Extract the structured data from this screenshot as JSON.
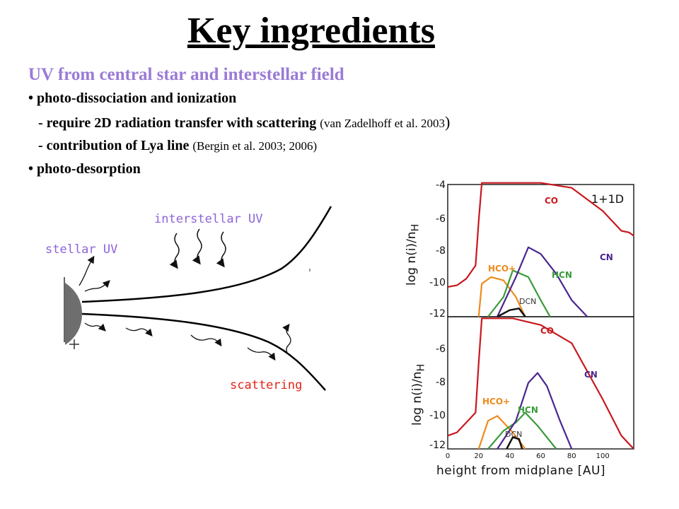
{
  "title": "Key ingredients",
  "subtitle": "UV from central star and interstellar field",
  "bullets": {
    "b1": "• photo-dissociation and ionization",
    "b1a_main": "- require 2D radiation transfer with scattering",
    "b1a_ref": "(van Zadelhoff et al. 2003",
    "b1a_paren": ")",
    "b1b_main": "- contribution of Lya line",
    "b1b_ref": "(Bergin et al. 2003; 2006)",
    "b2": "• photo-desorption"
  },
  "diagram": {
    "interstellar_uv": "interstellar UV",
    "stellar_uv": "stellar UV",
    "scattering": "scattering"
  },
  "chart": {
    "panel_label": "1+1D",
    "ylabel": "log n(i)/n",
    "ylabel_sub": "H",
    "xlabel": "height from midplane [AU]",
    "top_ticks": [
      "-4",
      "-6",
      "-8",
      "-10",
      "-12"
    ],
    "bottom_ticks": [
      "-6",
      "-8",
      "-10",
      "-12"
    ],
    "x_ticks": [
      "0",
      "20",
      "40",
      "60",
      "80",
      "100"
    ],
    "species": [
      "CO",
      "CN",
      "HCO+",
      "HCN",
      "DCN"
    ],
    "colors": {
      "CO": "#c8181e",
      "CN": "#4b2590",
      "HCO+": "#ee8a1c",
      "HCN": "#3a9a3a",
      "DCN": "#111111"
    }
  },
  "chart_data": {
    "type": "line",
    "xlabel": "height from midplane [AU]",
    "ylabel": "log n(i)/nH",
    "xlim": [
      0,
      120
    ],
    "panels": [
      {
        "label": "1+1D",
        "ylim": [
          -12,
          -4
        ],
        "series": [
          {
            "name": "CO",
            "x": [
              0,
              6,
              12,
              18,
              20,
              22,
              60,
              80,
              100,
              112,
              117,
              120
            ],
            "y": [
              -10.2,
              -10.1,
              -9.7,
              -8.9,
              -6.2,
              -3.9,
              -3.9,
              -4.2,
              -5.6,
              -6.8,
              -6.9,
              -7.1
            ]
          },
          {
            "name": "HCO+",
            "x": [
              20,
              22,
              28,
              36,
              44,
              50
            ],
            "y": [
              -12,
              -10.0,
              -9.6,
              -9.8,
              -10.8,
              -12
            ]
          },
          {
            "name": "HCN",
            "x": [
              26,
              36,
              42,
              52,
              60,
              66
            ],
            "y": [
              -12,
              -10.8,
              -9.2,
              -9.6,
              -11.0,
              -12
            ]
          },
          {
            "name": "CN",
            "x": [
              32,
              44,
              52,
              60,
              70,
              80,
              90
            ],
            "y": [
              -12,
              -9.6,
              -7.8,
              -8.2,
              -9.4,
              -11.0,
              -12
            ]
          },
          {
            "name": "DCN",
            "x": [
              32,
              40,
              46,
              50
            ],
            "y": [
              -12,
              -11.6,
              -11.5,
              -12
            ]
          }
        ]
      },
      {
        "label": "",
        "ylim": [
          -12,
          -4
        ],
        "series": [
          {
            "name": "CO",
            "x": [
              0,
              6,
              12,
              18,
              20,
              22,
              42,
              60,
              80,
              100,
              112,
              120
            ],
            "y": [
              -11.2,
              -11.0,
              -10.4,
              -9.8,
              -6.8,
              -4.1,
              -4.1,
              -4.5,
              -5.6,
              -9.0,
              -11.2,
              -12
            ]
          },
          {
            "name": "HCO+",
            "x": [
              20,
              26,
              32,
              36,
              42,
              50
            ],
            "y": [
              -12,
              -10.3,
              -10.0,
              -10.4,
              -11.0,
              -12
            ]
          },
          {
            "name": "HCN",
            "x": [
              26,
              36,
              44,
              50,
              58,
              70
            ],
            "y": [
              -12,
              -10.9,
              -10.4,
              -9.8,
              -10.6,
              -12
            ]
          },
          {
            "name": "CN",
            "x": [
              32,
              44,
              52,
              58,
              64,
              72,
              80
            ],
            "y": [
              -12,
              -10.3,
              -8.0,
              -7.4,
              -8.2,
              -10.2,
              -12
            ]
          },
          {
            "name": "DCN",
            "x": [
              38,
              42,
              46,
              48
            ],
            "y": [
              -12,
              -11.3,
              -11.4,
              -12
            ]
          }
        ]
      }
    ]
  }
}
